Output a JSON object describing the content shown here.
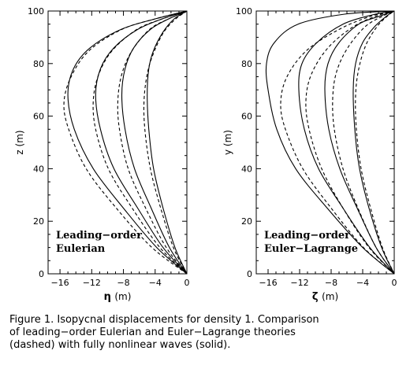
{
  "chart_data": [
    {
      "type": "line",
      "panel": "left",
      "xlabel_symbol": "η",
      "xlabel_unit": "(m)",
      "ylabel": "z (m)",
      "xlim": [
        -17.5,
        0
      ],
      "ylim": [
        0,
        100
      ],
      "xticks": [
        "−16",
        "−12",
        "−8",
        "−4",
        "0"
      ],
      "xtick_values": [
        -16,
        -12,
        -8,
        -4,
        0
      ],
      "yticks": [
        "0",
        "20",
        "40",
        "60",
        "80",
        "100"
      ],
      "ytick_values": [
        0,
        20,
        40,
        60,
        80,
        100
      ],
      "annotation": [
        "Leading−order",
        "Eulerian"
      ],
      "series": [
        {
          "style": "solid",
          "x": [
            0,
            -1.5,
            -3,
            -4.2,
            -4.8,
            -5,
            -4.8,
            -4.2,
            -3,
            -1.6,
            0
          ],
          "y": [
            0,
            10,
            25,
            40,
            55,
            68,
            78,
            85,
            92,
            97,
            100
          ]
        },
        {
          "style": "solid",
          "x": [
            0,
            -2.2,
            -4.5,
            -6.6,
            -7.8,
            -8.2,
            -7.8,
            -6.7,
            -4.6,
            -2.3,
            0
          ],
          "y": [
            0,
            10,
            25,
            40,
            55,
            68,
            78,
            86,
            93,
            97,
            100
          ]
        },
        {
          "style": "solid",
          "x": [
            0,
            -3,
            -6.2,
            -9.2,
            -10.9,
            -11.5,
            -10.9,
            -9.2,
            -6.2,
            -3.1,
            0
          ],
          "y": [
            0,
            10,
            25,
            40,
            55,
            68,
            78,
            86,
            93,
            97,
            100
          ]
        },
        {
          "style": "solid",
          "x": [
            0,
            -3.8,
            -8,
            -11.8,
            -14.2,
            -15,
            -14.3,
            -12.2,
            -8.3,
            -4,
            0
          ],
          "y": [
            0,
            10,
            25,
            40,
            55,
            68,
            78,
            86,
            93,
            97,
            100
          ]
        },
        {
          "style": "dashed",
          "x": [
            0,
            -1.7,
            -3.3,
            -4.6,
            -5.3,
            -5.4,
            -5,
            -4.2,
            -2.9,
            -1.4,
            0
          ],
          "y": [
            0,
            10,
            25,
            40,
            55,
            66,
            76,
            84,
            92,
            97,
            100
          ]
        },
        {
          "style": "dashed",
          "x": [
            0,
            -2.6,
            -5.2,
            -7.4,
            -8.5,
            -8.7,
            -8.2,
            -6.9,
            -4.7,
            -2.3,
            0
          ],
          "y": [
            0,
            10,
            25,
            40,
            55,
            66,
            76,
            85,
            93,
            97,
            100
          ]
        },
        {
          "style": "dashed",
          "x": [
            0,
            -3.4,
            -6.9,
            -9.9,
            -11.5,
            -11.8,
            -11.1,
            -9.4,
            -6.3,
            -3.1,
            0
          ],
          "y": [
            0,
            10,
            25,
            40,
            55,
            66,
            76,
            85,
            93,
            97,
            100
          ]
        },
        {
          "style": "dashed",
          "x": [
            0,
            -4.4,
            -8.9,
            -12.7,
            -14.9,
            -15.5,
            -14.6,
            -12.3,
            -8.2,
            -4,
            0
          ],
          "y": [
            0,
            10,
            25,
            40,
            55,
            65,
            75,
            85,
            93,
            97,
            100
          ]
        }
      ]
    },
    {
      "type": "line",
      "panel": "right",
      "xlabel_symbol": "ζ",
      "xlabel_unit": "(m)",
      "ylabel": "y (m)",
      "xlim": [
        -17.5,
        0
      ],
      "ylim": [
        0,
        100
      ],
      "xticks": [
        "−16",
        "−12",
        "−8",
        "−4",
        "0"
      ],
      "xtick_values": [
        -16,
        -12,
        -8,
        -4,
        0
      ],
      "yticks": [
        "0",
        "20",
        "40",
        "60",
        "80",
        "100"
      ],
      "ytick_values": [
        0,
        20,
        40,
        60,
        80,
        100
      ],
      "annotation": [
        "Leading−order",
        "Euler−Lagrange"
      ],
      "series": [
        {
          "style": "solid",
          "x": [
            0,
            -1.6,
            -3.2,
            -4.4,
            -5,
            -5.2,
            -4.9,
            -4,
            -2.5,
            -1,
            0
          ],
          "y": [
            0,
            10,
            25,
            40,
            55,
            70,
            80,
            88,
            94,
            98,
            100
          ]
        },
        {
          "style": "solid",
          "x": [
            0,
            -2.3,
            -4.7,
            -6.9,
            -8.3,
            -8.8,
            -8.4,
            -7,
            -4.5,
            -1.9,
            0
          ],
          "y": [
            0,
            10,
            25,
            40,
            55,
            70,
            80,
            88,
            95,
            98,
            100
          ]
        },
        {
          "style": "solid",
          "x": [
            0,
            -3.1,
            -6.5,
            -9.6,
            -11.4,
            -12.1,
            -11.7,
            -9.8,
            -6.5,
            -2.8,
            0
          ],
          "y": [
            0,
            10,
            25,
            40,
            55,
            70,
            80,
            88,
            95,
            98.5,
            100
          ]
        },
        {
          "style": "solid",
          "x": [
            0,
            -4,
            -8.5,
            -12.5,
            -14.9,
            -16,
            -16.2,
            -15.2,
            -12.2,
            -6.3,
            0
          ],
          "y": [
            0,
            10,
            25,
            40,
            55,
            70,
            80,
            88,
            95,
            98.8,
            100
          ]
        },
        {
          "style": "dashed",
          "x": [
            0,
            -1.5,
            -3,
            -4.2,
            -4.8,
            -4.9,
            -4.5,
            -3.6,
            -2.2,
            -0.9,
            0
          ],
          "y": [
            0,
            10,
            25,
            40,
            55,
            68,
            78,
            87,
            94,
            98,
            100
          ]
        },
        {
          "style": "dashed",
          "x": [
            0,
            -2.3,
            -4.6,
            -6.5,
            -7.6,
            -7.8,
            -7.3,
            -5.9,
            -3.7,
            -1.5,
            0
          ],
          "y": [
            0,
            10,
            25,
            40,
            55,
            67,
            77,
            86,
            94,
            98,
            100
          ]
        },
        {
          "style": "dashed",
          "x": [
            0,
            -3.2,
            -6.5,
            -9.2,
            -10.8,
            -11.2,
            -10.5,
            -8.4,
            -5.2,
            -2.1,
            0
          ],
          "y": [
            0,
            10,
            25,
            40,
            55,
            66,
            76,
            86,
            94,
            98.3,
            100
          ]
        },
        {
          "style": "dashed",
          "x": [
            0,
            -3.9,
            -8,
            -11.6,
            -13.8,
            -14.4,
            -13.6,
            -11.1,
            -7,
            -3,
            0
          ],
          "y": [
            0,
            10,
            25,
            40,
            55,
            65,
            75,
            85,
            93,
            98,
            100
          ]
        }
      ]
    }
  ],
  "caption": [
    "Figure 1. Isopycnal displacements for density 1. Comparison",
    "of leading−order Eulerian and Euler−Lagrange theories",
    "(dashed) with fully nonlinear waves (solid)."
  ]
}
